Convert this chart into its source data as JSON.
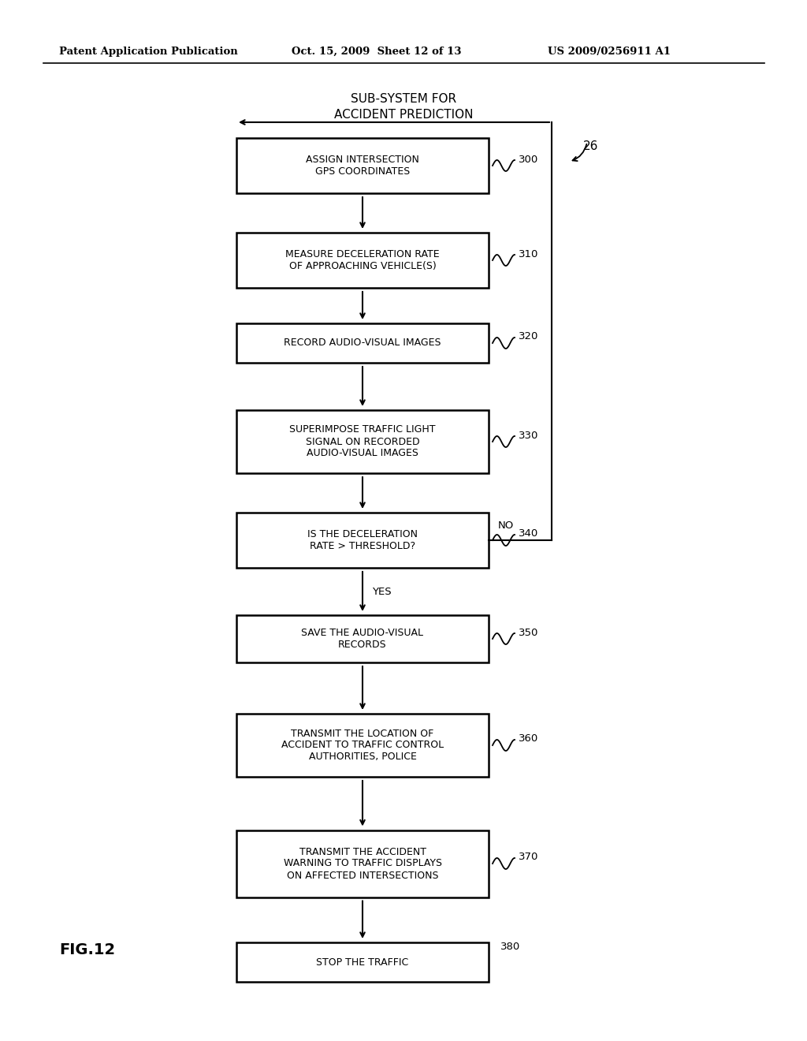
{
  "header_left": "Patent Application Publication",
  "header_mid": "Oct. 15, 2009  Sheet 12 of 13",
  "header_right": "US 2009/0256911 A1",
  "title_line1": "SUB-SYSTEM FOR",
  "title_line2": "ACCIDENT PREDICTION",
  "fig_label": "FIG.12",
  "system_label": "26",
  "bg_color": "#ffffff",
  "box_color": "#ffffff",
  "box_edge_color": "#000000",
  "text_color": "#000000",
  "boxes": [
    {
      "id": 300,
      "label": "ASSIGN INTERSECTION\nGPS COORDINATES"
    },
    {
      "id": 310,
      "label": "MEASURE DECELERATION RATE\nOF APPROACHING VEHICLE(S)"
    },
    {
      "id": 320,
      "label": "RECORD AUDIO-VISUAL IMAGES"
    },
    {
      "id": 330,
      "label": "SUPERIMPOSE TRAFFIC LIGHT\nSIGNAL ON RECORDED\nAUDIO-VISUAL IMAGES"
    },
    {
      "id": 340,
      "label": "IS THE DECELERATION\nRATE > THRESHOLD?"
    },
    {
      "id": 350,
      "label": "SAVE THE AUDIO-VISUAL\nRECORDS"
    },
    {
      "id": 360,
      "label": "TRANSMIT THE LOCATION OF\nACCIDENT TO TRAFFIC CONTROL\nAUTHORITIES, POLICE"
    },
    {
      "id": 370,
      "label": "TRANSMIT THE ACCIDENT\nWARNING TO TRAFFIC DISPLAYS\nON AFFECTED INTERSECTIONS"
    },
    {
      "id": 380,
      "label": "STOP THE TRAFFIC"
    }
  ]
}
